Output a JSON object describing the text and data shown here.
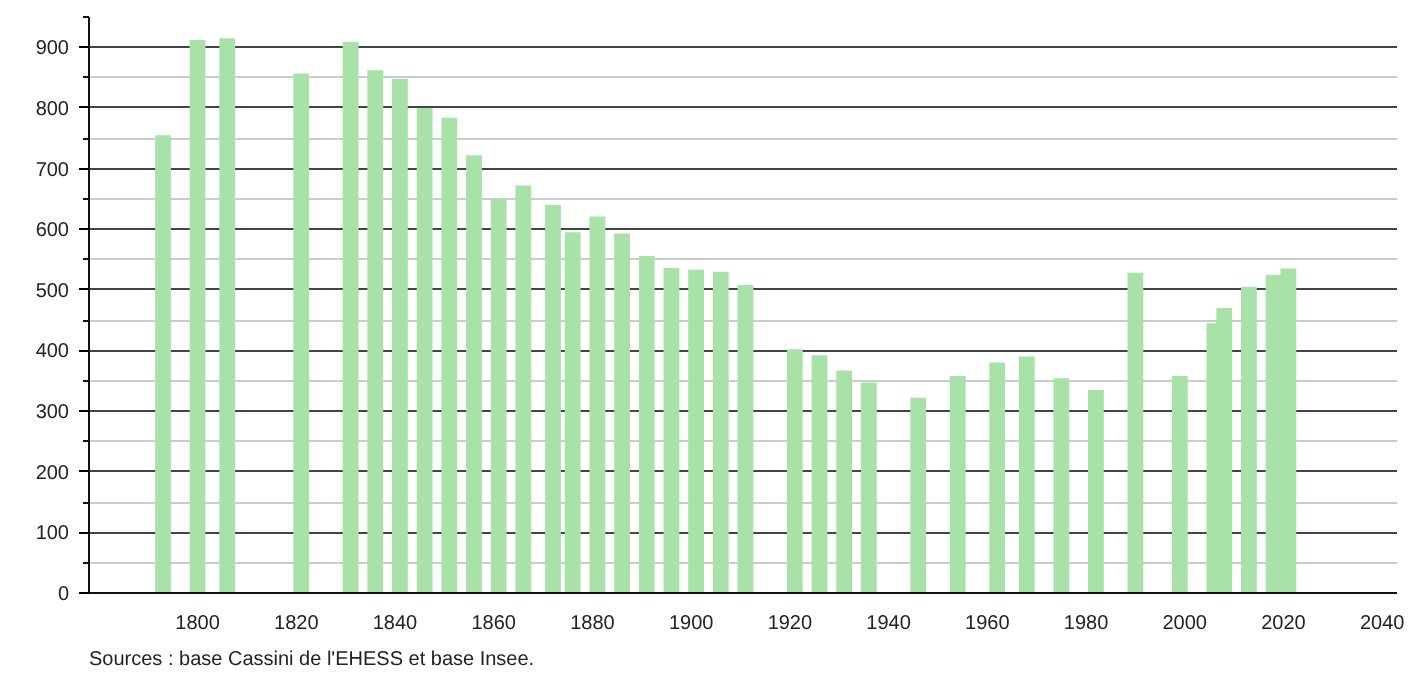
{
  "chart_data": {
    "type": "bar",
    "x": [
      1793,
      1800,
      1806,
      1821,
      1831,
      1836,
      1841,
      1846,
      1851,
      1856,
      1861,
      1866,
      1872,
      1876,
      1881,
      1886,
      1891,
      1896,
      1901,
      1906,
      1911,
      1921,
      1926,
      1931,
      1936,
      1946,
      1954,
      1962,
      1968,
      1975,
      1982,
      1990,
      1999,
      2006,
      2008,
      2013,
      2018,
      2021
    ],
    "values": [
      755,
      912,
      915,
      857,
      909,
      862,
      848,
      800,
      784,
      722,
      650,
      672,
      640,
      595,
      621,
      593,
      556,
      536,
      533,
      530,
      508,
      402,
      392,
      367,
      347,
      322,
      358,
      380,
      390,
      354,
      335,
      528,
      358,
      445,
      470,
      505,
      525,
      535
    ],
    "color": "#a8e2a8",
    "xlim": [
      1778,
      2043
    ],
    "ylim": [
      0,
      950
    ],
    "xticks": [
      1800,
      1820,
      1840,
      1860,
      1880,
      1900,
      1920,
      1940,
      1960,
      1980,
      2000,
      2020,
      2040
    ],
    "yticks": [
      0,
      100,
      200,
      300,
      400,
      500,
      600,
      700,
      800,
      900
    ],
    "grid": "y",
    "annotations": [
      "Sources : base Cassini de l'EHESS et base Insee."
    ]
  }
}
